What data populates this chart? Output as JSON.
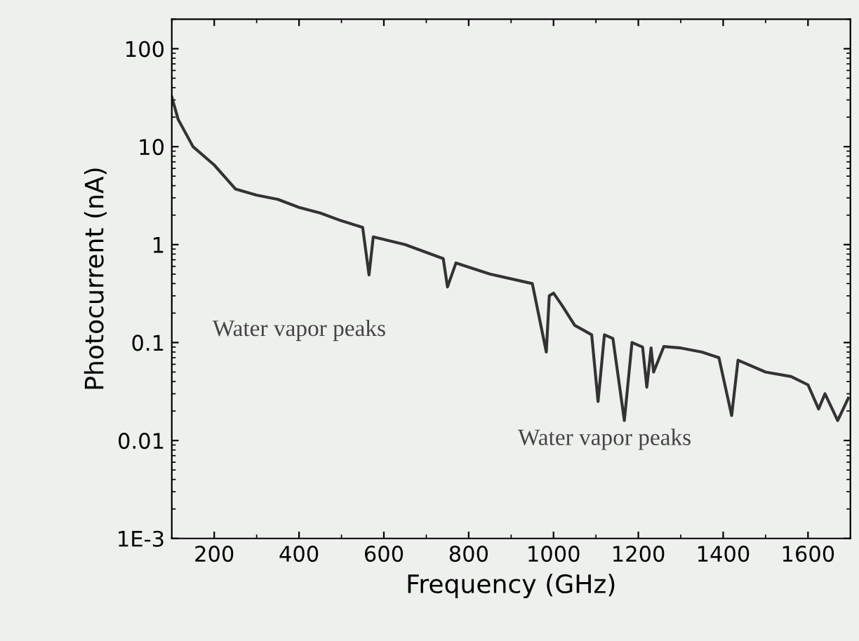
{
  "chart_data": {
    "type": "line",
    "xlabel": "Frequency (GHz)",
    "ylabel": "Photocurrent (nA)",
    "log": "y",
    "xlim": [
      100,
      1700
    ],
    "ylim": [
      0.001,
      200
    ],
    "xticks": [
      200,
      400,
      600,
      800,
      1000,
      1200,
      1400,
      1600
    ],
    "yticks": [
      {
        "value": 0.001,
        "label": "1E-3"
      },
      0.01,
      0.1,
      1,
      10,
      100
    ],
    "grid": false,
    "marker": "none",
    "line_style": "solid",
    "annotations": [
      "Water vapor peaks",
      "Water vapor peaks"
    ],
    "series": [
      {
        "color": "#333333",
        "x": [
          100,
          115,
          150,
          200,
          250,
          300,
          350,
          400,
          450,
          500,
          550,
          565,
          575,
          650,
          740,
          750,
          770,
          850,
          950,
          983,
          990,
          1000,
          1020,
          1050,
          1090,
          1105,
          1120,
          1140,
          1167,
          1185,
          1210,
          1220,
          1230,
          1236,
          1260,
          1300,
          1350,
          1390,
          1420,
          1435,
          1500,
          1560,
          1600,
          1625,
          1640,
          1670,
          1695
        ],
        "values": [
          32,
          19,
          10,
          6.5,
          3.7,
          3.2,
          2.9,
          2.4,
          2.1,
          1.75,
          1.5,
          0.49,
          1.2,
          1.0,
          0.72,
          0.37,
          0.65,
          0.5,
          0.4,
          0.08,
          0.3,
          0.32,
          0.24,
          0.15,
          0.12,
          0.025,
          0.12,
          0.11,
          0.016,
          0.1,
          0.09,
          0.035,
          0.088,
          0.05,
          0.091,
          0.088,
          0.08,
          0.07,
          0.018,
          0.066,
          0.05,
          0.045,
          0.037,
          0.021,
          0.03,
          0.016,
          0.027
        ]
      }
    ]
  }
}
